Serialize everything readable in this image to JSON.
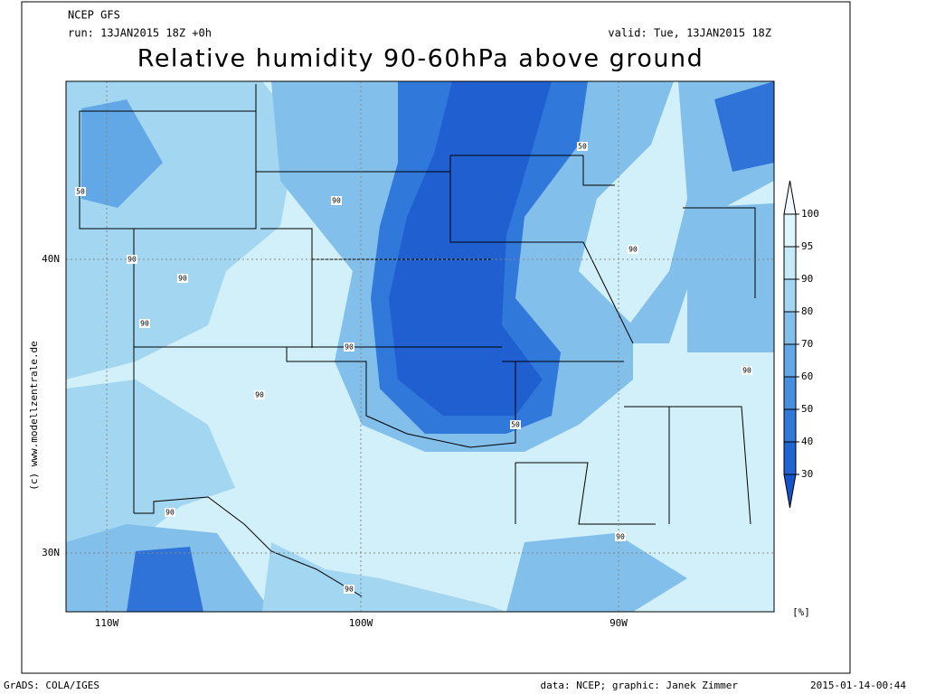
{
  "header": {
    "model": "NCEP GFS",
    "run": "run: 13JAN2015 18Z +0h",
    "valid": "valid: Tue, 13JAN2015 18Z",
    "title": "Relative humidity 90-60hPa above ground"
  },
  "map": {
    "lat_labels": [
      "40N",
      "30N"
    ],
    "lon_labels": [
      "110W",
      "100W",
      "90W"
    ],
    "credit": "(c) www.modellzentrale.de",
    "contour_labels": [
      "50",
      "90",
      "90",
      "90",
      "90",
      "90",
      "90",
      "50",
      "50",
      "90",
      "90",
      "90",
      "90",
      "90"
    ]
  },
  "colorbar": {
    "ticks": [
      100,
      95,
      90,
      80,
      70,
      60,
      50,
      40,
      30
    ],
    "unit": "[%]",
    "colors": [
      "#f4fbfe",
      "#def5fb",
      "#c4ebf7",
      "#a3d6f1",
      "#82bfea",
      "#63a8e6",
      "#468fe0",
      "#3078da",
      "#2063d2",
      "#1553c9"
    ]
  },
  "footer": {
    "software": "GrADS: COLA/IGES",
    "credit": "data: NCEP; graphic: Janek Zimmer",
    "timestamp": "2015-01-14-00:44"
  }
}
